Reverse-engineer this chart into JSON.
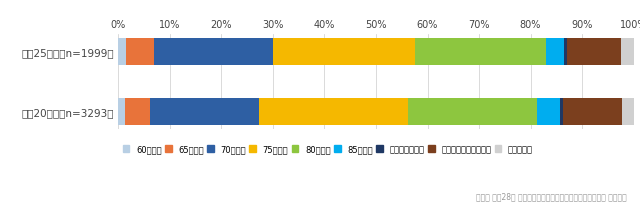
{
  "categories": [
    "平成25年度（n=1999）",
    "平成20年度（n=3293）"
  ],
  "series": [
    {
      "label": "60歳以上",
      "color": "#b8cfe4",
      "values": [
        1.5,
        1.2
      ]
    },
    {
      "label": "65歳以上",
      "color": "#e8733a",
      "values": [
        5.5,
        5.0
      ]
    },
    {
      "label": "70歳以上",
      "color": "#2e5fa3",
      "values": [
        23.0,
        21.0
      ]
    },
    {
      "label": "75歳以上",
      "color": "#f5b800",
      "values": [
        27.5,
        29.0
      ]
    },
    {
      "label": "80歳以上",
      "color": "#8dc63f",
      "values": [
        25.5,
        25.0
      ]
    },
    {
      "label": "85歳以上",
      "color": "#00adef",
      "values": [
        3.5,
        4.5
      ]
    },
    {
      "label": "これ以外の年齢",
      "color": "#1f3864",
      "values": [
        0.5,
        0.5
      ]
    },
    {
      "label": "年齢では判断できない",
      "color": "#7b3f1e",
      "values": [
        10.5,
        11.5
      ]
    },
    {
      "label": "わからない",
      "color": "#d0d0d0",
      "values": [
        2.5,
        2.3
      ]
    }
  ],
  "xlim": [
    0,
    100
  ],
  "xticks": [
    0,
    10,
    20,
    30,
    40,
    50,
    60,
    70,
    80,
    90,
    100
  ],
  "xtick_labels": [
    "0%",
    "10%",
    "20%",
    "30%",
    "40%",
    "50%",
    "60%",
    "70%",
    "80%",
    "90%",
    "100%"
  ],
  "source_text": "内閣府 平成28年 高齢者の経済・生活環境に関する調査結果 より作図",
  "background_color": "#ffffff",
  "bar_height": 0.45,
  "legend_fontsize": 6.0,
  "ylabel_fontsize": 7.5,
  "tick_fontsize": 7.0
}
